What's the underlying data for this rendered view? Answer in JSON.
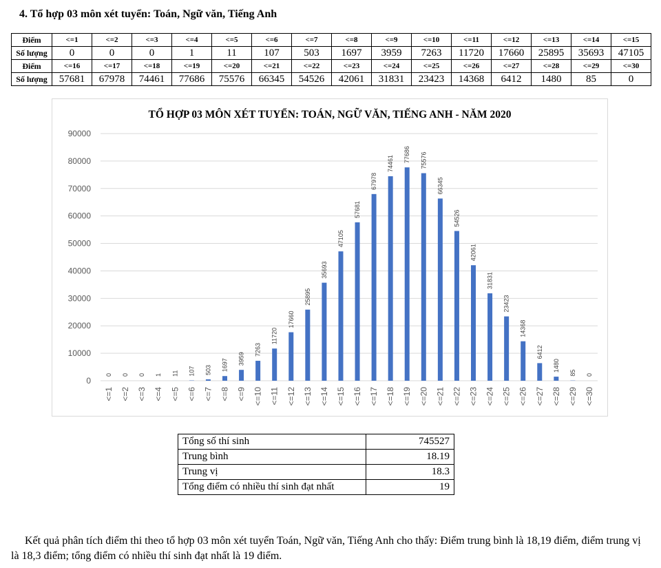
{
  "heading": "4. Tổ hợp 03 môn xét tuyển: Toán, Ngữ văn, Tiếng Anh",
  "score_table": {
    "row_labels": {
      "score": "Điểm",
      "count": "Số lượng"
    },
    "rows": [
      {
        "scores": [
          "<=1",
          "<=2",
          "<=3",
          "<=4",
          "<=5",
          "<=6",
          "<=7",
          "<=8",
          "<=9",
          "<=10",
          "<=11",
          "<=12",
          "<=13",
          "<=14",
          "<=15"
        ],
        "counts": [
          "0",
          "0",
          "0",
          "1",
          "11",
          "107",
          "503",
          "1697",
          "3959",
          "7263",
          "11720",
          "17660",
          "25895",
          "35693",
          "47105"
        ]
      },
      {
        "scores": [
          "<=16",
          "<=17",
          "<=18",
          "<=19",
          "<=20",
          "<=21",
          "<=22",
          "<=23",
          "<=24",
          "<=25",
          "<=26",
          "<=27",
          "<=28",
          "<=29",
          "<=30"
        ],
        "counts": [
          "57681",
          "67978",
          "74461",
          "77686",
          "75576",
          "66345",
          "54526",
          "42061",
          "31831",
          "23423",
          "14368",
          "6412",
          "1480",
          "85",
          "0"
        ]
      }
    ]
  },
  "chart_data": {
    "type": "bar",
    "title": "TỔ HỢP 03 MÔN XÉT TUYỂN: TOÁN, NGỮ VĂN, TIẾNG ANH - NĂM 2020",
    "categories": [
      "<=1",
      "<=2",
      "<=3",
      "<=4",
      "<=5",
      "<=6",
      "<=7",
      "<=8",
      "<=9",
      "<=10",
      "<=11",
      "<=12",
      "<=13",
      "<=14",
      "<=15",
      "<=16",
      "<=17",
      "<=18",
      "<=19",
      "<=20",
      "<=21",
      "<=22",
      "<=23",
      "<=24",
      "<=25",
      "<=26",
      "<=27",
      "<=28",
      "<=29",
      "<=30"
    ],
    "values": [
      0,
      0,
      0,
      1,
      11,
      107,
      503,
      1697,
      3959,
      7263,
      11720,
      17660,
      25895,
      35693,
      47105,
      57681,
      67978,
      74461,
      77686,
      75576,
      66345,
      54526,
      42061,
      31831,
      23423,
      14368,
      6412,
      1480,
      85,
      0
    ],
    "ylim": [
      0,
      90000
    ],
    "yticks": [
      0,
      10000,
      20000,
      30000,
      40000,
      50000,
      60000,
      70000,
      80000,
      90000
    ],
    "grid": true,
    "legend": false,
    "bar_color": "#4472c4",
    "grid_color": "#d9d9d9",
    "label_color": "#404040",
    "tick_color": "#595959",
    "title_color": "#262626"
  },
  "stats": [
    {
      "label": "Tổng số thí sinh",
      "value": "745527"
    },
    {
      "label": "Trung bình",
      "value": "18.19"
    },
    {
      "label": "Trung vị",
      "value": "18.3"
    },
    {
      "label": "Tổng điểm có nhiều thí sinh đạt nhất",
      "value": "19"
    }
  ],
  "summary": "Kết quả phân tích điểm thi theo tổ hợp 03 môn xét tuyển Toán, Ngữ văn, Tiếng Anh cho thấy: Điểm trung bình là 18,19 điểm, điểm trung vị là 18,3 điểm; tổng điểm có nhiều thí sinh đạt nhất là 19 điểm."
}
